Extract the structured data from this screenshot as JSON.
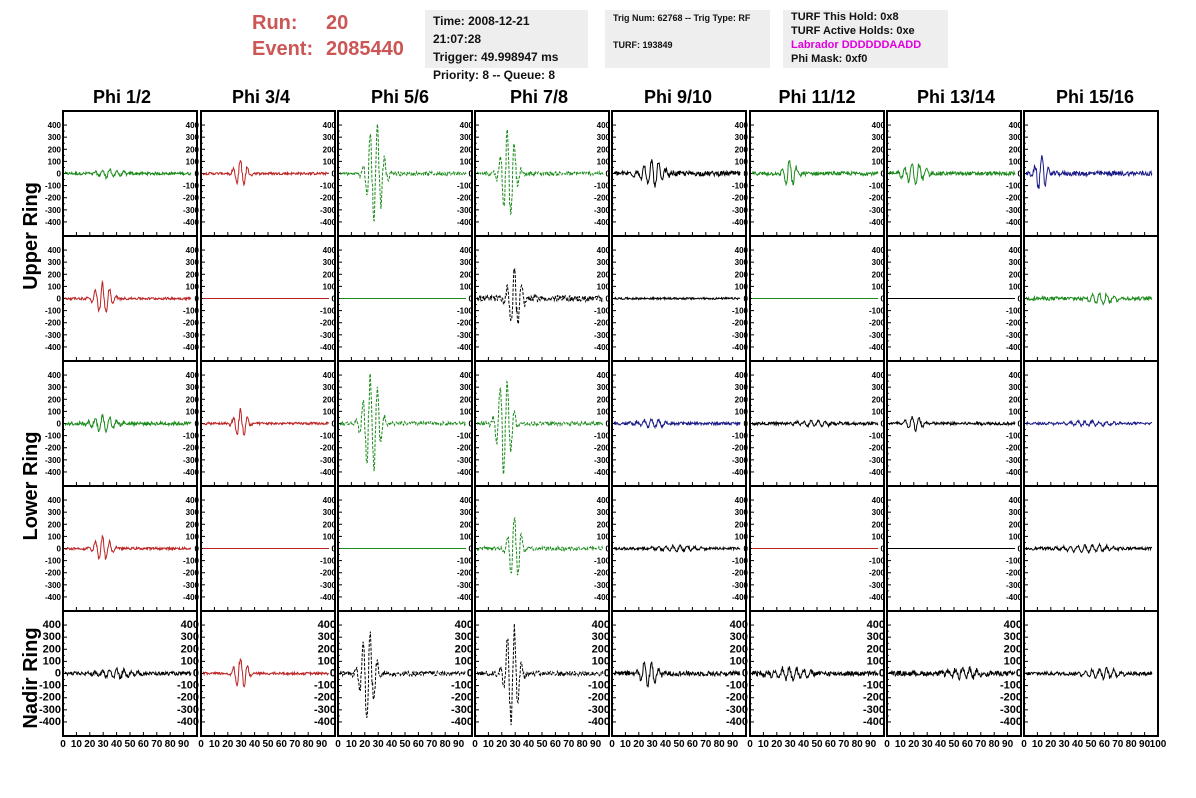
{
  "header": {
    "run_label": "Run:",
    "run_value": "20",
    "event_label": "Event:",
    "event_value": "2085440"
  },
  "time_box": {
    "time": "Time: 2008-12-21 21:07:28",
    "trigger": "Trigger: 49.998947 ms",
    "priority": "Priority: 8 -- Queue: 8"
  },
  "trig_box": {
    "line1": "Trig Num: 62768 -- Trig Type: RF",
    "line2": "TURF: 193849"
  },
  "turf_box": {
    "this_hold": "TURF This Hold: 0x8",
    "active_holds": "TURF Active Holds: 0xe",
    "labrador": "Labrador DDDDDDAADD",
    "phi_mask": "Phi Mask: 0xf0"
  },
  "columns": [
    "Phi 1/2",
    "Phi 3/4",
    "Phi 5/6",
    "Phi 7/8",
    "Phi 9/10",
    "Phi 11/12",
    "Phi 13/14",
    "Phi 15/16"
  ],
  "rings": [
    "Upper Ring",
    "Lower Ring",
    "Nadir Ring"
  ],
  "y_ticks": [
    "400",
    "300",
    "200",
    "100",
    "0",
    "-100",
    "-200",
    "-300",
    "-400"
  ],
  "x_tick_labels": [
    "0",
    "10",
    "20",
    "30",
    "40",
    "50",
    "60",
    "70",
    "80",
    "90",
    "100"
  ],
  "colors": {
    "green": "#1a8a1a",
    "red": "#bb2222",
    "black": "#000000",
    "blue": "#1a1a88",
    "run_text": "#cc5555",
    "magenta": "#e000e0"
  },
  "waveforms": [
    [
      {
        "color": "green",
        "dashed": false,
        "peak": 30,
        "center": 0.35,
        "width": 0.25,
        "noise": 12
      },
      {
        "color": "red",
        "dashed": false,
        "peak": 110,
        "center": 0.3,
        "width": 0.12,
        "noise": 10
      },
      {
        "color": "green",
        "dashed": true,
        "peak": 430,
        "center": 0.28,
        "width": 0.14,
        "noise": 15
      },
      {
        "color": "green",
        "dashed": true,
        "peak": 380,
        "center": 0.25,
        "width": 0.13,
        "noise": 15
      },
      {
        "color": "black",
        "dashed": false,
        "peak": 110,
        "center": 0.3,
        "width": 0.2,
        "noise": 20
      },
      {
        "color": "green",
        "dashed": false,
        "peak": 110,
        "center": 0.3,
        "width": 0.12,
        "noise": 15
      },
      {
        "color": "green",
        "dashed": false,
        "peak": 80,
        "center": 0.2,
        "width": 0.2,
        "noise": 15
      },
      {
        "color": "blue",
        "dashed": false,
        "peak": 150,
        "center": 0.12,
        "width": 0.1,
        "noise": 20
      }
    ],
    [
      {
        "color": "red",
        "dashed": false,
        "peak": 130,
        "center": 0.3,
        "width": 0.15,
        "noise": 10
      },
      {
        "color": "red",
        "dashed": false,
        "peak": 0,
        "center": 0.5,
        "width": 0.1,
        "noise": 0
      },
      {
        "color": "green",
        "dashed": false,
        "peak": 0,
        "center": 0.5,
        "width": 0.1,
        "noise": 0
      },
      {
        "color": "black",
        "dashed": true,
        "peak": 260,
        "center": 0.3,
        "width": 0.12,
        "noise": 25
      },
      {
        "color": "black",
        "dashed": false,
        "peak": 0,
        "center": 0.5,
        "width": 0.1,
        "noise": 8
      },
      {
        "color": "green",
        "dashed": false,
        "peak": 0,
        "center": 0.5,
        "width": 0.1,
        "noise": 0
      },
      {
        "color": "black",
        "dashed": false,
        "peak": 0,
        "center": 0.5,
        "width": 0.1,
        "noise": 0
      },
      {
        "color": "green",
        "dashed": false,
        "peak": 40,
        "center": 0.6,
        "width": 0.25,
        "noise": 15
      }
    ],
    [
      {
        "color": "green",
        "dashed": false,
        "peak": 70,
        "center": 0.3,
        "width": 0.2,
        "noise": 15
      },
      {
        "color": "red",
        "dashed": false,
        "peak": 120,
        "center": 0.3,
        "width": 0.12,
        "noise": 10
      },
      {
        "color": "green",
        "dashed": true,
        "peak": 420,
        "center": 0.25,
        "width": 0.15,
        "noise": 15
      },
      {
        "color": "green",
        "dashed": true,
        "peak": 420,
        "center": 0.22,
        "width": 0.13,
        "noise": 15
      },
      {
        "color": "blue",
        "dashed": false,
        "peak": 30,
        "center": 0.3,
        "width": 0.3,
        "noise": 12
      },
      {
        "color": "black",
        "dashed": false,
        "peak": 20,
        "center": 0.5,
        "width": 0.4,
        "noise": 12
      },
      {
        "color": "black",
        "dashed": false,
        "peak": 60,
        "center": 0.2,
        "width": 0.15,
        "noise": 12
      },
      {
        "color": "blue",
        "dashed": false,
        "peak": 20,
        "center": 0.5,
        "width": 0.4,
        "noise": 10
      }
    ],
    [
      {
        "color": "red",
        "dashed": false,
        "peak": 100,
        "center": 0.3,
        "width": 0.15,
        "noise": 10
      },
      {
        "color": "red",
        "dashed": false,
        "peak": 0,
        "center": 0.5,
        "width": 0.1,
        "noise": 0
      },
      {
        "color": "green",
        "dashed": false,
        "peak": 0,
        "center": 0.5,
        "width": 0.1,
        "noise": 0
      },
      {
        "color": "green",
        "dashed": true,
        "peak": 250,
        "center": 0.3,
        "width": 0.12,
        "noise": 15
      },
      {
        "color": "black",
        "dashed": false,
        "peak": 20,
        "center": 0.5,
        "width": 0.4,
        "noise": 10
      },
      {
        "color": "red",
        "dashed": false,
        "peak": 0,
        "center": 0.5,
        "width": 0.1,
        "noise": 0
      },
      {
        "color": "black",
        "dashed": false,
        "peak": 0,
        "center": 0.5,
        "width": 0.1,
        "noise": 0
      },
      {
        "color": "black",
        "dashed": false,
        "peak": 30,
        "center": 0.5,
        "width": 0.4,
        "noise": 12
      }
    ],
    [
      {
        "color": "black",
        "dashed": false,
        "peak": 40,
        "center": 0.4,
        "width": 0.3,
        "noise": 15
      },
      {
        "color": "red",
        "dashed": false,
        "peak": 130,
        "center": 0.3,
        "width": 0.12,
        "noise": 10
      },
      {
        "color": "black",
        "dashed": true,
        "peak": 380,
        "center": 0.22,
        "width": 0.13,
        "noise": 20
      },
      {
        "color": "black",
        "dashed": true,
        "peak": 440,
        "center": 0.28,
        "width": 0.12,
        "noise": 20
      },
      {
        "color": "black",
        "dashed": false,
        "peak": 110,
        "center": 0.28,
        "width": 0.15,
        "noise": 20
      },
      {
        "color": "black",
        "dashed": false,
        "peak": 50,
        "center": 0.3,
        "width": 0.3,
        "noise": 20
      },
      {
        "color": "black",
        "dashed": false,
        "peak": 40,
        "center": 0.6,
        "width": 0.3,
        "noise": 20
      },
      {
        "color": "black",
        "dashed": false,
        "peak": 40,
        "center": 0.6,
        "width": 0.3,
        "noise": 15
      }
    ]
  ]
}
